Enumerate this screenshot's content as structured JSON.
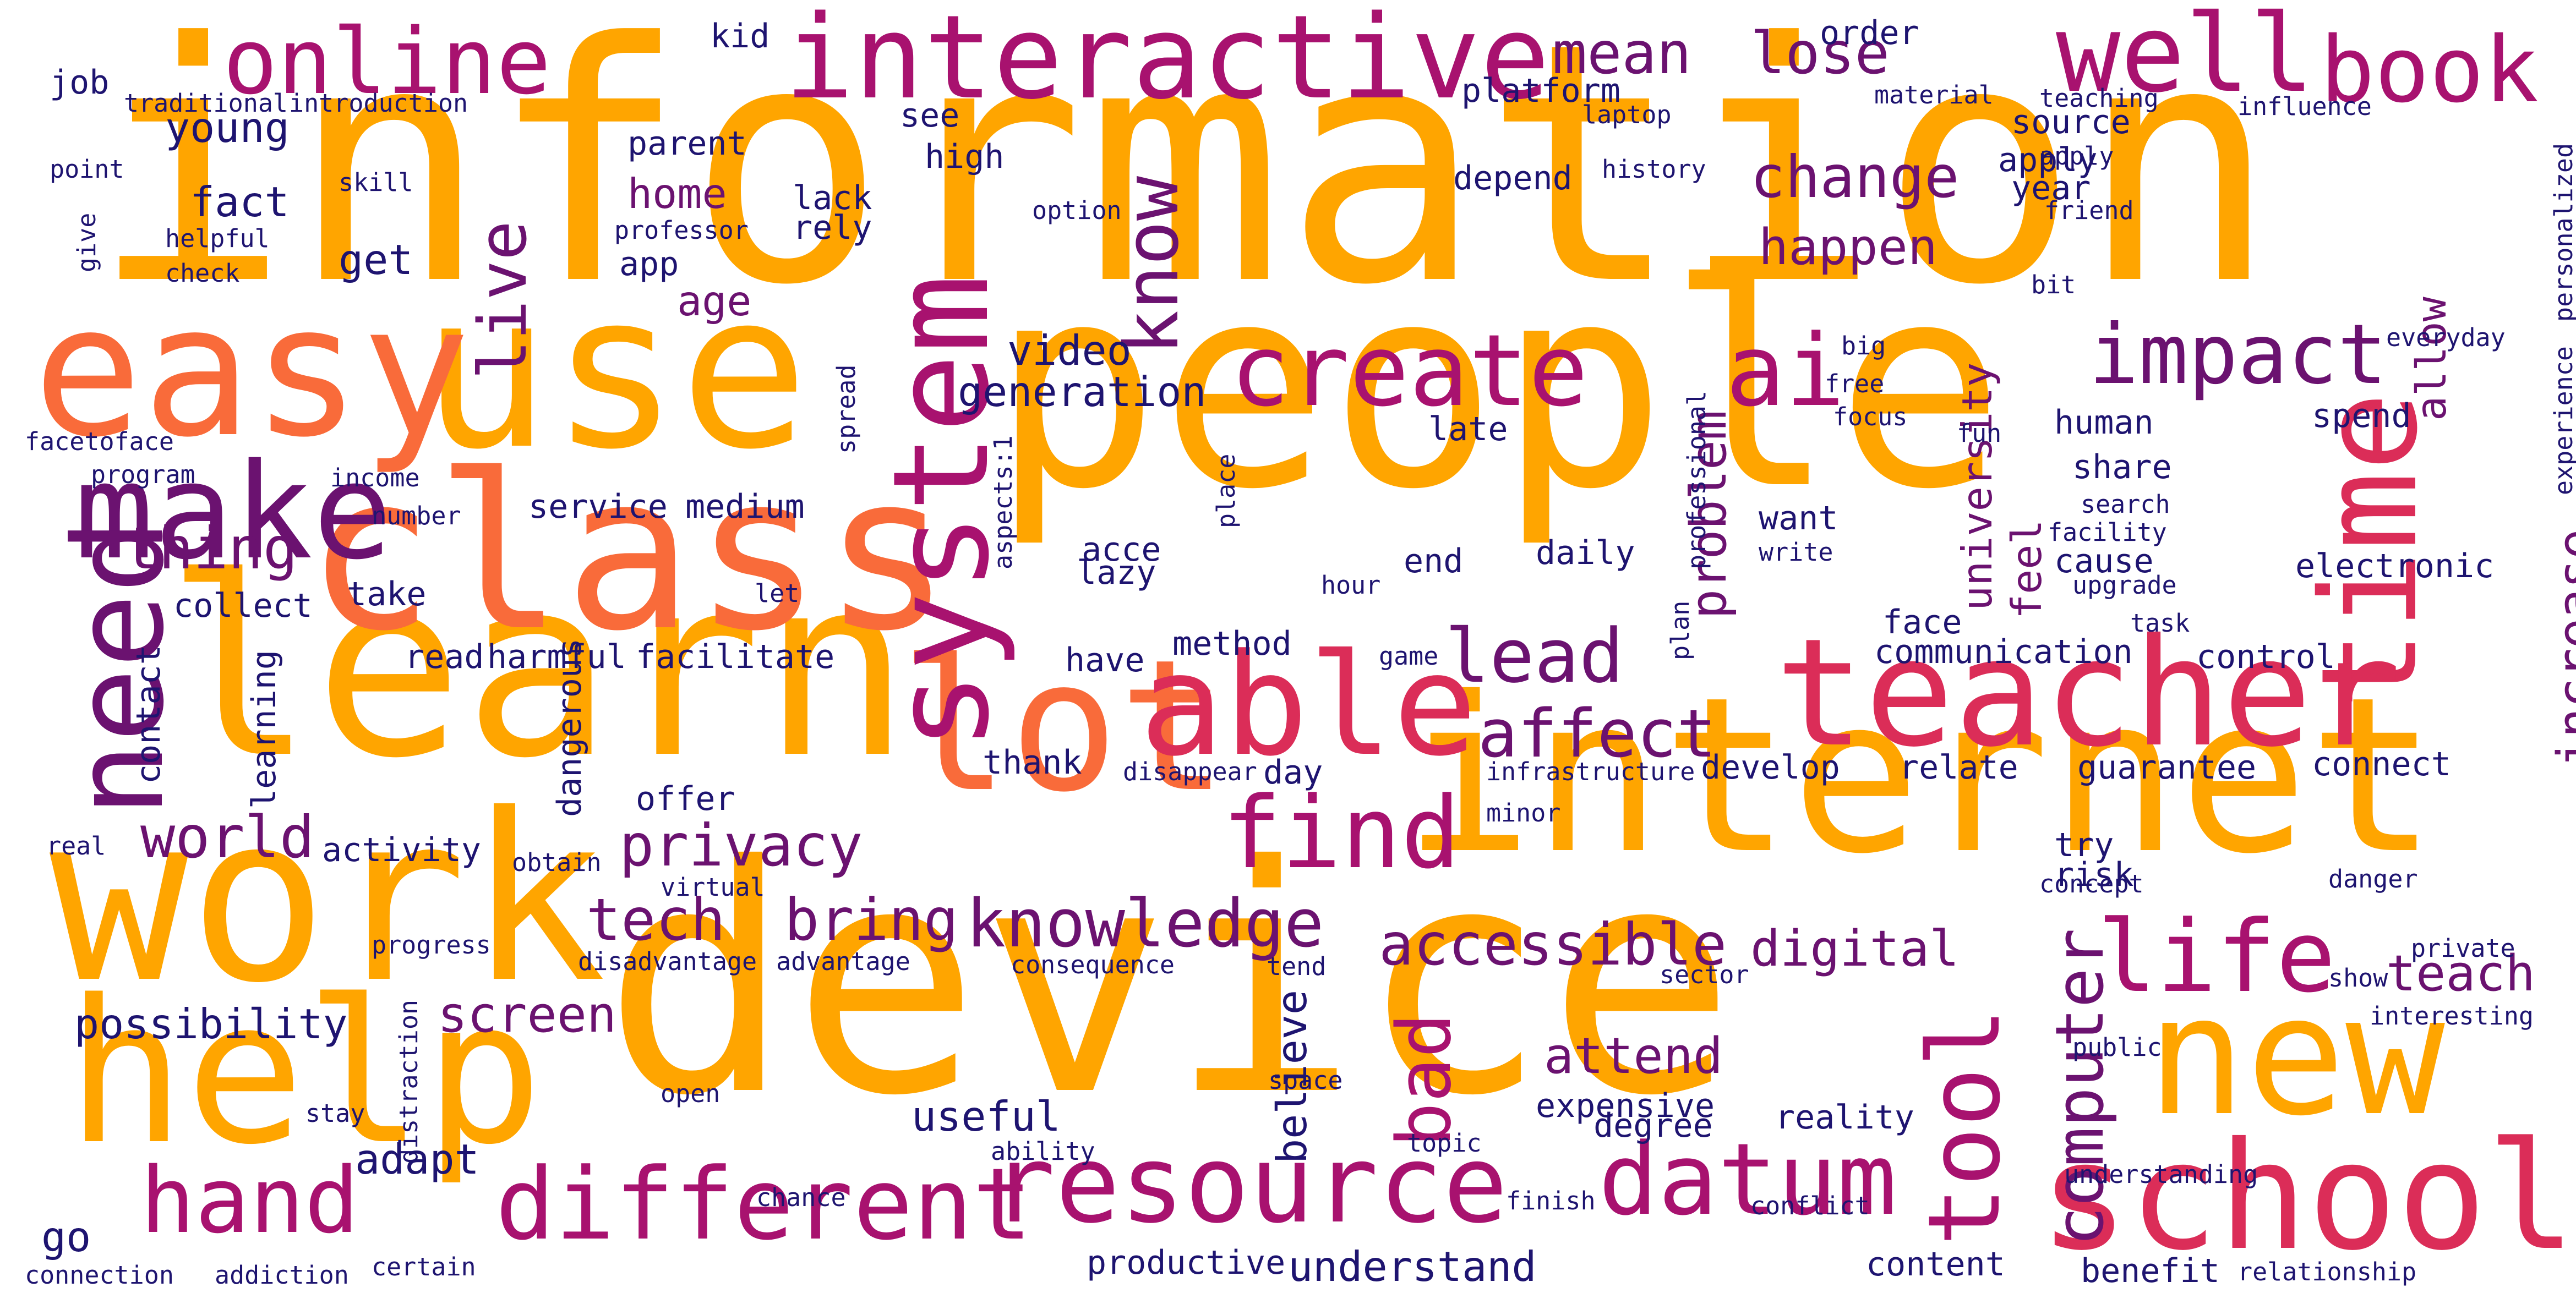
{
  "palette": {
    "orange": "#ffa500",
    "coral": "#f96b3a",
    "red": "#db2d58",
    "magenta": "#a8126f",
    "purple": "#6b1270",
    "navy": "#1e1470"
  },
  "words": [
    {
      "text": "information",
      "color": "orange"
    },
    {
      "text": "people",
      "color": "orange"
    },
    {
      "text": "device",
      "color": "orange"
    },
    {
      "text": "internet",
      "color": "orange"
    },
    {
      "text": "learn",
      "color": "orange"
    },
    {
      "text": "use",
      "color": "orange"
    },
    {
      "text": "work",
      "color": "orange"
    },
    {
      "text": "help",
      "color": "orange"
    },
    {
      "text": "class",
      "color": "coral"
    },
    {
      "text": "lot",
      "color": "coral"
    },
    {
      "text": "easy",
      "color": "coral"
    },
    {
      "text": "time",
      "color": "red"
    },
    {
      "text": "teacher",
      "color": "red"
    },
    {
      "text": "new",
      "color": "orange"
    },
    {
      "text": "school",
      "color": "red"
    },
    {
      "text": "able",
      "color": "red"
    },
    {
      "text": "system",
      "color": "magenta"
    },
    {
      "text": "make",
      "color": "purple"
    },
    {
      "text": "need",
      "color": "purple"
    },
    {
      "text": "interactive",
      "color": "magenta"
    },
    {
      "text": "well",
      "color": "magenta"
    },
    {
      "text": "online",
      "color": "magenta"
    },
    {
      "text": "book",
      "color": "magenta"
    },
    {
      "text": "resource",
      "color": "magenta"
    },
    {
      "text": "different",
      "color": "magenta"
    },
    {
      "text": "datum",
      "color": "magenta"
    },
    {
      "text": "tool",
      "color": "magenta"
    },
    {
      "text": "hand",
      "color": "magenta"
    },
    {
      "text": "create",
      "color": "magenta"
    },
    {
      "text": "find",
      "color": "magenta"
    },
    {
      "text": "life",
      "color": "magenta"
    },
    {
      "text": "ai",
      "color": "magenta"
    },
    {
      "text": "impact",
      "color": "purple"
    },
    {
      "text": "computer",
      "color": "purple"
    },
    {
      "text": "live",
      "color": "purple"
    },
    {
      "text": "know",
      "color": "purple"
    },
    {
      "text": "lead",
      "color": "purple"
    },
    {
      "text": "affect",
      "color": "purple"
    },
    {
      "text": "bad",
      "color": "magenta"
    },
    {
      "text": "knowledge",
      "color": "purple"
    },
    {
      "text": "accessible",
      "color": "purple"
    },
    {
      "text": "privacy",
      "color": "purple"
    },
    {
      "text": "mean",
      "color": "purple"
    },
    {
      "text": "lose",
      "color": "purple"
    },
    {
      "text": "change",
      "color": "purple"
    },
    {
      "text": "happen",
      "color": "purple"
    },
    {
      "text": "increase",
      "color": "purple"
    },
    {
      "text": "thing",
      "color": "purple"
    },
    {
      "text": "world",
      "color": "purple"
    },
    {
      "text": "tech",
      "color": "purple"
    },
    {
      "text": "bring",
      "color": "purple"
    },
    {
      "text": "teach",
      "color": "purple"
    },
    {
      "text": "digital",
      "color": "purple"
    },
    {
      "text": "attend",
      "color": "purple"
    },
    {
      "text": "screen",
      "color": "purple"
    },
    {
      "text": "problem",
      "color": "purple"
    },
    {
      "text": "university",
      "color": "purple"
    },
    {
      "text": "feel",
      "color": "purple"
    },
    {
      "text": "video",
      "color": "navy"
    },
    {
      "text": "generation",
      "color": "navy"
    },
    {
      "text": "home",
      "color": "purple"
    },
    {
      "text": "age",
      "color": "purple"
    },
    {
      "text": "fact",
      "color": "navy"
    },
    {
      "text": "get",
      "color": "navy"
    },
    {
      "text": "young",
      "color": "navy"
    },
    {
      "text": "allow",
      "color": "purple"
    },
    {
      "text": "possibility",
      "color": "navy"
    },
    {
      "text": "useful",
      "color": "navy"
    },
    {
      "text": "believe",
      "color": "navy"
    },
    {
      "text": "adapt",
      "color": "navy"
    },
    {
      "text": "go",
      "color": "navy"
    },
    {
      "text": "understand",
      "color": "navy"
    },
    {
      "text": "productive",
      "color": "navy"
    },
    {
      "text": "expensive",
      "color": "navy"
    },
    {
      "text": "degree",
      "color": "navy"
    },
    {
      "text": "reality",
      "color": "navy"
    },
    {
      "text": "content",
      "color": "navy"
    },
    {
      "text": "benefit",
      "color": "navy"
    },
    {
      "text": "cause",
      "color": "navy"
    },
    {
      "text": "face",
      "color": "navy"
    },
    {
      "text": "want",
      "color": "navy"
    },
    {
      "text": "human",
      "color": "navy"
    },
    {
      "text": "share",
      "color": "navy"
    },
    {
      "text": "source",
      "color": "navy"
    },
    {
      "text": "year",
      "color": "navy"
    },
    {
      "text": "apply",
      "color": "navy"
    },
    {
      "text": "kid",
      "color": "navy"
    },
    {
      "text": "job",
      "color": "navy"
    },
    {
      "text": "parent",
      "color": "navy"
    },
    {
      "text": "order",
      "color": "navy"
    },
    {
      "text": "platform",
      "color": "navy"
    },
    {
      "text": "see",
      "color": "navy"
    },
    {
      "text": "high",
      "color": "navy"
    },
    {
      "text": "lack",
      "color": "navy"
    },
    {
      "text": "rely",
      "color": "navy"
    },
    {
      "text": "app",
      "color": "navy"
    },
    {
      "text": "depend",
      "color": "navy"
    },
    {
      "text": "have",
      "color": "navy"
    },
    {
      "text": "thank",
      "color": "navy"
    },
    {
      "text": "day",
      "color": "navy"
    },
    {
      "text": "method",
      "color": "navy"
    },
    {
      "text": "facilitate",
      "color": "navy"
    },
    {
      "text": "read",
      "color": "navy"
    },
    {
      "text": "harmful",
      "color": "navy"
    },
    {
      "text": "learning",
      "color": "navy"
    },
    {
      "text": "contact",
      "color": "navy"
    },
    {
      "text": "dangerous",
      "color": "navy"
    },
    {
      "text": "activity",
      "color": "navy"
    },
    {
      "text": "offer",
      "color": "navy"
    },
    {
      "text": "service",
      "color": "navy"
    },
    {
      "text": "medium",
      "color": "navy"
    },
    {
      "text": "take",
      "color": "navy"
    },
    {
      "text": "collect",
      "color": "navy"
    },
    {
      "text": "acce",
      "color": "navy"
    },
    {
      "text": "lazy",
      "color": "navy"
    },
    {
      "text": "end",
      "color": "navy"
    },
    {
      "text": "daily",
      "color": "navy"
    },
    {
      "text": "late",
      "color": "navy"
    },
    {
      "text": "communication",
      "color": "navy"
    },
    {
      "text": "relate",
      "color": "navy"
    },
    {
      "text": "develop",
      "color": "navy"
    },
    {
      "text": "connect",
      "color": "navy"
    },
    {
      "text": "electronic",
      "color": "navy"
    },
    {
      "text": "control",
      "color": "navy"
    },
    {
      "text": "try",
      "color": "navy"
    },
    {
      "text": "risk",
      "color": "navy"
    },
    {
      "text": "guarantee",
      "color": "navy"
    },
    {
      "text": "spend",
      "color": "navy"
    },
    {
      "text": "apply",
      "color": "navy"
    },
    {
      "text": "friend",
      "color": "navy"
    },
    {
      "text": "everyday",
      "color": "navy"
    },
    {
      "text": "experience",
      "color": "navy"
    },
    {
      "text": "personalized",
      "color": "navy"
    },
    {
      "text": "influence",
      "color": "navy"
    },
    {
      "text": "material",
      "color": "navy"
    },
    {
      "text": "teaching",
      "color": "navy"
    },
    {
      "text": "laptop",
      "color": "navy"
    },
    {
      "text": "history",
      "color": "navy"
    },
    {
      "text": "option",
      "color": "navy"
    },
    {
      "text": "professor",
      "color": "navy"
    },
    {
      "text": "helpful",
      "color": "navy"
    },
    {
      "text": "check",
      "color": "navy"
    },
    {
      "text": "skill",
      "color": "navy"
    },
    {
      "text": "point",
      "color": "navy"
    },
    {
      "text": "traditional",
      "color": "navy"
    },
    {
      "text": "introduction",
      "color": "navy"
    },
    {
      "text": "give",
      "color": "navy"
    },
    {
      "text": "facetoface",
      "color": "navy"
    },
    {
      "text": "program",
      "color": "navy"
    },
    {
      "text": "income",
      "color": "navy"
    },
    {
      "text": "number",
      "color": "navy"
    },
    {
      "text": "spread",
      "color": "navy"
    },
    {
      "text": "aspects:1",
      "color": "navy"
    },
    {
      "text": "place",
      "color": "navy"
    },
    {
      "text": "hour",
      "color": "navy"
    },
    {
      "text": "let",
      "color": "navy"
    },
    {
      "text": "game",
      "color": "navy"
    },
    {
      "text": "plan",
      "color": "navy"
    },
    {
      "text": "professional",
      "color": "navy"
    },
    {
      "text": "write",
      "color": "navy"
    },
    {
      "text": "free",
      "color": "navy"
    },
    {
      "text": "focus",
      "color": "navy"
    },
    {
      "text": "big",
      "color": "navy"
    },
    {
      "text": "fun",
      "color": "navy"
    },
    {
      "text": "search",
      "color": "navy"
    },
    {
      "text": "facility",
      "color": "navy"
    },
    {
      "text": "upgrade",
      "color": "navy"
    },
    {
      "text": "task",
      "color": "navy"
    },
    {
      "text": "bit",
      "color": "navy"
    },
    {
      "text": "infrastructure",
      "color": "navy"
    },
    {
      "text": "minor",
      "color": "navy"
    },
    {
      "text": "disappear",
      "color": "navy"
    },
    {
      "text": "obtain",
      "color": "navy"
    },
    {
      "text": "virtual",
      "color": "navy"
    },
    {
      "text": "real",
      "color": "navy"
    },
    {
      "text": "progress",
      "color": "navy"
    },
    {
      "text": "disadvantage",
      "color": "navy"
    },
    {
      "text": "advantage",
      "color": "navy"
    },
    {
      "text": "consequence",
      "color": "navy"
    },
    {
      "text": "tend",
      "color": "navy"
    },
    {
      "text": "sector",
      "color": "navy"
    },
    {
      "text": "concept",
      "color": "navy"
    },
    {
      "text": "danger",
      "color": "navy"
    },
    {
      "text": "private",
      "color": "navy"
    },
    {
      "text": "show",
      "color": "navy"
    },
    {
      "text": "interesting",
      "color": "navy"
    },
    {
      "text": "public",
      "color": "navy"
    },
    {
      "text": "distraction",
      "color": "navy"
    },
    {
      "text": "space",
      "color": "navy"
    },
    {
      "text": "open",
      "color": "navy"
    },
    {
      "text": "stay",
      "color": "navy"
    },
    {
      "text": "ability",
      "color": "navy"
    },
    {
      "text": "topic",
      "color": "navy"
    },
    {
      "text": "chance",
      "color": "navy"
    },
    {
      "text": "finish",
      "color": "navy"
    },
    {
      "text": "conflict",
      "color": "navy"
    },
    {
      "text": "understanding",
      "color": "navy"
    },
    {
      "text": "connection",
      "color": "navy"
    },
    {
      "text": "addiction",
      "color": "navy"
    },
    {
      "text": "certain",
      "color": "navy"
    },
    {
      "text": "relationship",
      "color": "navy"
    }
  ]
}
